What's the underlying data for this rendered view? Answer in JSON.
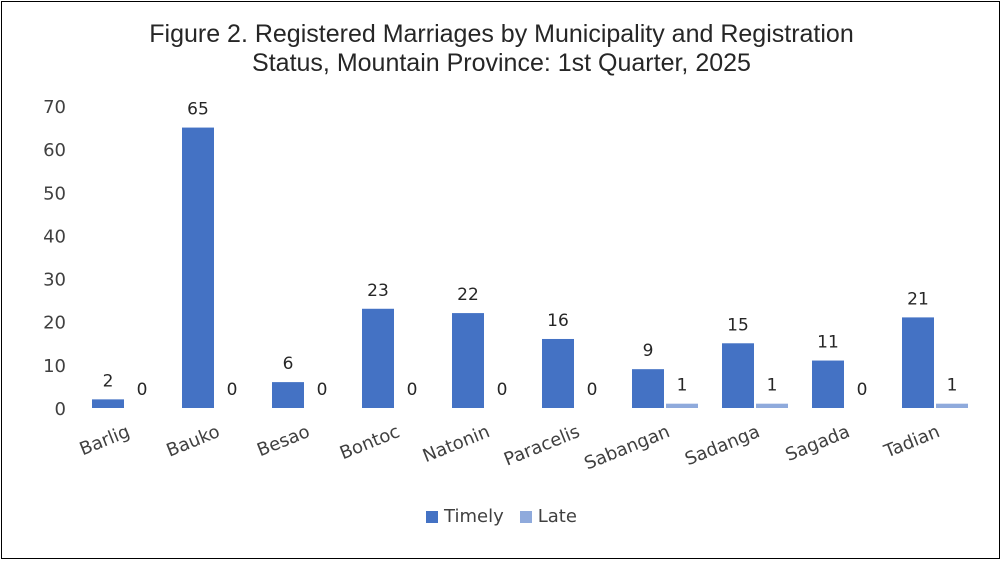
{
  "chart_data": {
    "type": "bar",
    "title_lines": [
      "Figure 2. Registered Marriages by Municipality and Registration",
      "Status, Mountain Province: 1st Quarter, 2025"
    ],
    "categories": [
      "Barlig",
      "Bauko",
      "Besao",
      "Bontoc",
      "Natonin",
      "Paracelis",
      "Sabangan",
      "Sadanga",
      "Sagada",
      "Tadian"
    ],
    "series": [
      {
        "name": "Timely",
        "values": [
          2,
          65,
          6,
          23,
          22,
          16,
          9,
          15,
          11,
          21
        ],
        "color": "#4472C4"
      },
      {
        "name": "Late",
        "values": [
          0,
          0,
          0,
          0,
          0,
          0,
          1,
          1,
          0,
          1
        ],
        "color": "#8FAADC"
      }
    ],
    "ylim": [
      0,
      70
    ],
    "yticks": [
      0,
      10,
      20,
      30,
      40,
      50,
      60,
      70
    ],
    "grid": false,
    "legend_position": "bottom",
    "data_labels": true
  }
}
